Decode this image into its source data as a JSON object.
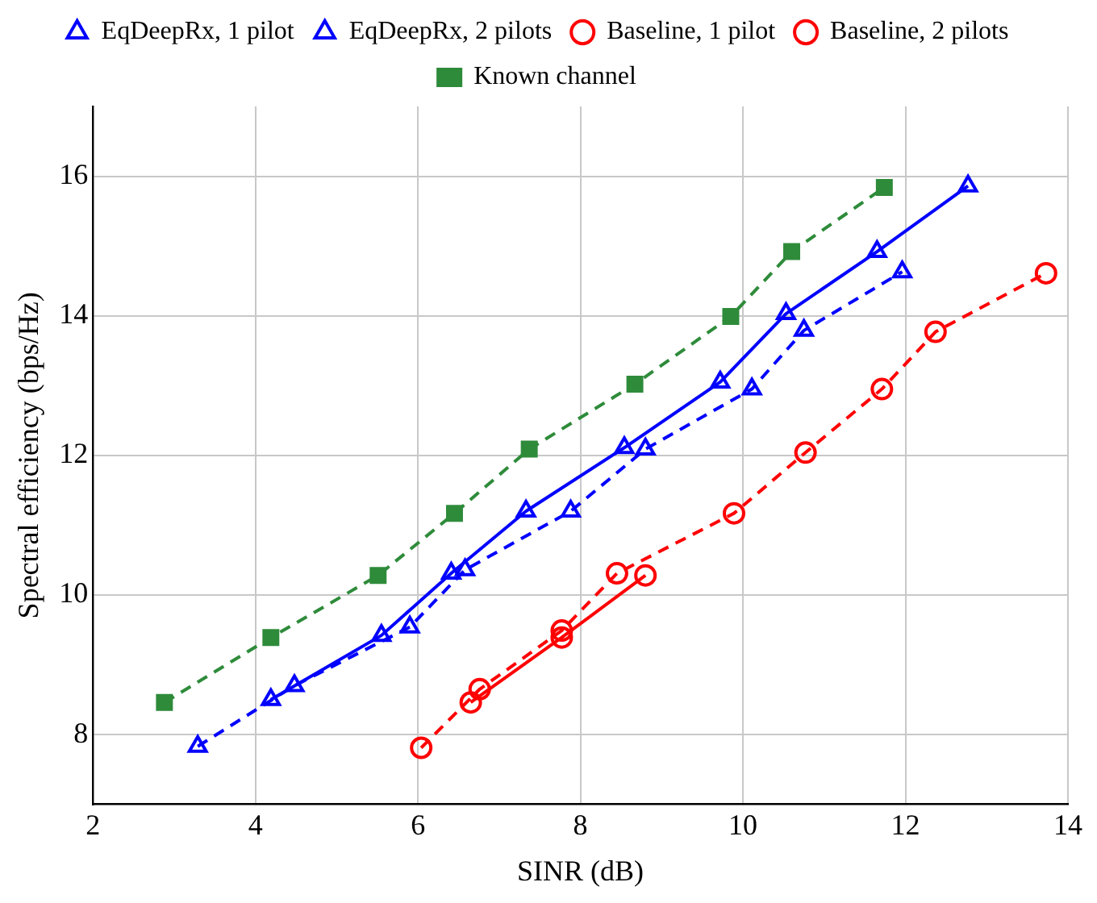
{
  "chart_data": {
    "type": "line",
    "xlabel": "SINR (dB)",
    "ylabel": "Spectral efficiency (bps/Hz)",
    "xlim": [
      2,
      14
    ],
    "xticks": [
      2,
      4,
      6,
      8,
      10,
      12,
      14
    ],
    "ylim": [
      7,
      17
    ],
    "yticks": [
      8,
      10,
      12,
      14,
      16
    ],
    "grid": true,
    "legend": "top",
    "series": [
      {
        "name": "EqDeepRx, 1 pilot",
        "color": "#0000ff",
        "marker": "triangle",
        "line_style": "solid",
        "x": [
          4.19,
          5.55,
          6.41,
          7.33,
          8.54,
          9.72,
          10.53,
          11.65,
          12.77
        ],
        "values": [
          8.5,
          9.42,
          10.31,
          11.2,
          12.11,
          13.05,
          14.03,
          14.92,
          15.86
        ]
      },
      {
        "name": "EqDeepRx, 2 pilots",
        "color": "#0000ff",
        "marker": "triangle",
        "line_style": "dashed",
        "x": [
          3.29,
          4.48,
          5.9,
          6.58,
          7.88,
          8.8,
          10.11,
          10.75,
          11.96
        ],
        "values": [
          7.83,
          8.7,
          9.54,
          10.36,
          11.2,
          12.09,
          12.95,
          13.79,
          14.63
        ]
      },
      {
        "name": "Baseline, 1 pilot",
        "color": "#ff0000",
        "marker": "circle",
        "line_style": "solid",
        "x": [
          6.65,
          7.77,
          8.8
        ],
        "values": [
          8.46,
          9.39,
          10.28
        ]
      },
      {
        "name": "Baseline, 2 pilots",
        "color": "#ff0000",
        "marker": "circle",
        "line_style": "dashed",
        "x": [
          6.04,
          6.76,
          7.77,
          8.45,
          9.89,
          10.77,
          11.71,
          12.37,
          13.73
        ],
        "values": [
          7.81,
          8.65,
          9.49,
          10.31,
          11.17,
          12.04,
          12.95,
          13.77,
          14.61
        ]
      },
      {
        "name": "Known channel",
        "color": "#2e8b3a",
        "marker": "square",
        "line_style": "dashed",
        "x": [
          2.88,
          4.19,
          5.51,
          6.45,
          7.37,
          8.67,
          9.85,
          10.6,
          11.74
        ],
        "values": [
          8.46,
          9.39,
          10.28,
          11.17,
          12.09,
          13.02,
          13.99,
          14.92,
          15.84
        ]
      }
    ]
  }
}
